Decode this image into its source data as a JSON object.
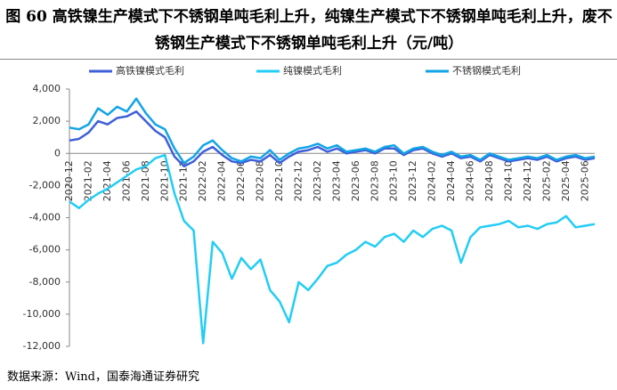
{
  "chart_data": {
    "type": "line",
    "title": "图 60 高铁镍生产模式下不锈钢单吨毛利上升，纯镍生产模式下不锈钢单吨毛利上升，废不锈钢生产模式下不锈钢单吨毛利上升（元/吨）",
    "source": "数据来源：Wind，国泰海通证券研究",
    "categories": [
      "2020-12",
      null,
      "2021-02",
      null,
      "2021-04",
      null,
      "2021-06",
      null,
      "2021-08",
      null,
      "2021-10",
      null,
      "2021-12",
      null,
      "2022-02",
      null,
      "2022-04",
      null,
      "2022-06",
      null,
      "2022-08",
      null,
      "2022-10",
      null,
      "2022-12",
      null,
      "2023-02",
      null,
      "2023-04",
      null,
      "2023-06",
      null,
      "2023-08",
      null,
      "2023-10",
      null,
      "2023-12",
      null,
      "2024-02",
      null,
      "2024-04",
      null,
      "2024-06",
      null,
      "2024-08",
      null,
      "2024-10",
      null,
      "2024-12",
      null,
      "2025-02",
      null,
      "2025-04",
      null,
      "2025-06",
      null
    ],
    "series": [
      {
        "name": "高铁镍模式毛利",
        "color": "#3f5fd9",
        "values": [
          800,
          900,
          1300,
          2000,
          1800,
          2200,
          2300,
          2600,
          2000,
          1400,
          1000,
          -200,
          -800,
          -500,
          100,
          400,
          -100,
          -500,
          -600,
          -400,
          -500,
          -100,
          -600,
          -200,
          100,
          200,
          400,
          100,
          300,
          0,
          100,
          200,
          0,
          300,
          300,
          -100,
          200,
          300,
          0,
          -200,
          0,
          -300,
          -200,
          -500,
          -100,
          -300,
          -500,
          -400,
          -300,
          -400,
          -200,
          -500,
          -300,
          -200,
          -400,
          -300
        ]
      },
      {
        "name": "纯镍模式毛利",
        "color": "#22cdf5",
        "values": [
          -3000,
          -3400,
          -2900,
          -2500,
          -2200,
          -1800,
          -1400,
          -1000,
          -800,
          -300,
          -100,
          -2500,
          -4200,
          -4800,
          -11800,
          -5500,
          -6200,
          -7800,
          -6500,
          -7200,
          -6600,
          -8500,
          -9200,
          -10500,
          -8000,
          -8500,
          -7800,
          -7000,
          -6800,
          -6300,
          -6000,
          -5500,
          -5800,
          -5200,
          -5000,
          -5500,
          -4800,
          -5200,
          -4700,
          -4500,
          -4800,
          -6800,
          -5200,
          -4600,
          -4500,
          -4400,
          -4200,
          -4600,
          -4500,
          -4700,
          -4400,
          -4300,
          -3900,
          -4600,
          -4500,
          -4400
        ]
      },
      {
        "name": "不锈钢模式毛利",
        "color": "#12a4e6",
        "values": [
          1600,
          1500,
          1800,
          2800,
          2400,
          2900,
          2600,
          3400,
          2500,
          1800,
          1500,
          300,
          -600,
          -200,
          500,
          800,
          200,
          -300,
          -500,
          -200,
          -300,
          200,
          -400,
          0,
          300,
          400,
          600,
          300,
          500,
          100,
          200,
          300,
          100,
          400,
          500,
          0,
          300,
          400,
          100,
          -100,
          100,
          -200,
          -100,
          -400,
          0,
          -200,
          -400,
          -300,
          -200,
          -300,
          -100,
          -400,
          -200,
          -100,
          -300,
          -200
        ]
      }
    ],
    "ylim": [
      -12000,
      4000
    ],
    "yticks": [
      {
        "value": -12000,
        "label": "-12,000"
      },
      {
        "value": -10000,
        "label": "-10,000"
      },
      {
        "value": -8000,
        "label": "-8,000"
      },
      {
        "value": -6000,
        "label": "-6,000"
      },
      {
        "value": -4000,
        "label": "-4,000"
      },
      {
        "value": -2000,
        "label": "-2,000"
      },
      0,
      {
        "value": 2000,
        "label": "2,000"
      },
      {
        "value": 4000,
        "label": "4,000"
      }
    ],
    "legend": "top"
  }
}
